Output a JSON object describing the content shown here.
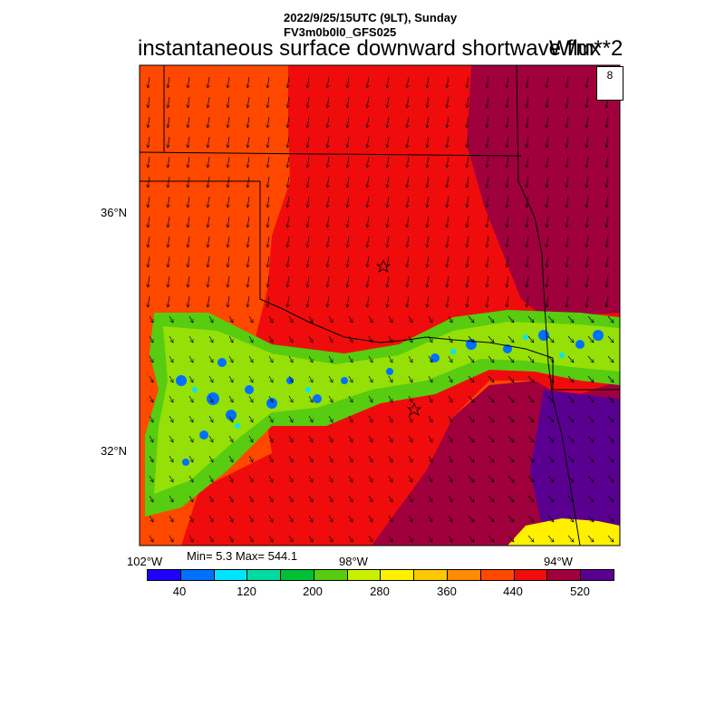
{
  "header": {
    "line1": "2022/9/25/15UTC (9LT), Sunday",
    "line2": "FV3m0b0l0_GFS025"
  },
  "title": "instantaneous surface downward shortwave flux",
  "units": "W/m**2",
  "reference_vector": {
    "value": "8"
  },
  "axes": {
    "lon_labels": [
      "102°W",
      "98°W",
      "94°W"
    ],
    "lat_labels": [
      "36°N",
      "32°N"
    ]
  },
  "stats": {
    "text": "Min= 5.3 Max= 544.1"
  },
  "colorbar": {
    "colors": [
      "#1f00ff",
      "#0070ff",
      "#00e5ff",
      "#00dca0",
      "#00c038",
      "#58cc10",
      "#c8f000",
      "#fff000",
      "#ffc800",
      "#ff8c00",
      "#ff4800",
      "#f00c0c",
      "#a0003c",
      "#5a0090"
    ],
    "tick_labels": [
      "40",
      "120",
      "200",
      "280",
      "360",
      "440",
      "520"
    ]
  },
  "map_colors": {
    "orange_region": "#ff4800",
    "red_region": "#f00c0c",
    "maroon_region": "#a0003c",
    "purple_region": "#5a0090",
    "yellow_band": "#fff000"
  }
}
